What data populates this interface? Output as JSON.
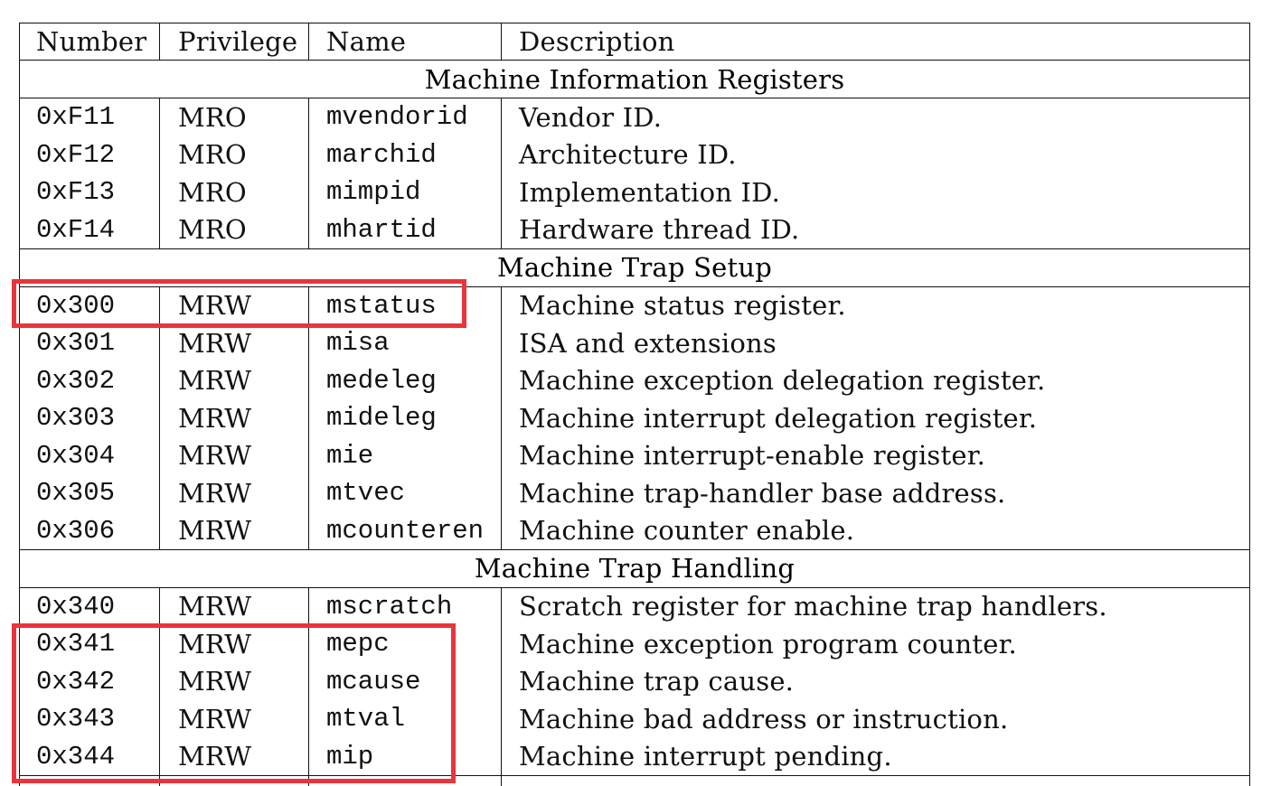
{
  "header": {
    "number": "Number",
    "privilege": "Privilege",
    "name": "Name",
    "description": "Description"
  },
  "sections": [
    {
      "title": "Machine Information Registers",
      "rows": [
        {
          "number": "0xF11",
          "privilege": "MRO",
          "name": "mvendorid",
          "description": "Vendor ID."
        },
        {
          "number": "0xF12",
          "privilege": "MRO",
          "name": "marchid",
          "description": "Architecture ID."
        },
        {
          "number": "0xF13",
          "privilege": "MRO",
          "name": "mimpid",
          "description": "Implementation ID."
        },
        {
          "number": "0xF14",
          "privilege": "MRO",
          "name": "mhartid",
          "description": "Hardware thread ID."
        }
      ]
    },
    {
      "title": "Machine Trap Setup",
      "rows": [
        {
          "number": "0x300",
          "privilege": "MRW",
          "name": "mstatus",
          "description": "Machine status register."
        },
        {
          "number": "0x301",
          "privilege": "MRW",
          "name": "misa",
          "description": "ISA and extensions"
        },
        {
          "number": "0x302",
          "privilege": "MRW",
          "name": "medeleg",
          "description": "Machine exception delegation register."
        },
        {
          "number": "0x303",
          "privilege": "MRW",
          "name": "mideleg",
          "description": "Machine interrupt delegation register."
        },
        {
          "number": "0x304",
          "privilege": "MRW",
          "name": "mie",
          "description": "Machine interrupt-enable register."
        },
        {
          "number": "0x305",
          "privilege": "MRW",
          "name": "mtvec",
          "description": "Machine trap-handler base address."
        },
        {
          "number": "0x306",
          "privilege": "MRW",
          "name": "mcounteren",
          "description": "Machine counter enable."
        }
      ]
    },
    {
      "title": "Machine Trap Handling",
      "rows": [
        {
          "number": "0x340",
          "privilege": "MRW",
          "name": "mscratch",
          "description": "Scratch register for machine trap handlers."
        },
        {
          "number": "0x341",
          "privilege": "MRW",
          "name": "mepc",
          "description": "Machine exception program counter."
        },
        {
          "number": "0x342",
          "privilege": "MRW",
          "name": "mcause",
          "description": "Machine trap cause."
        },
        {
          "number": "0x343",
          "privilege": "MRW",
          "name": "mtval",
          "description": "Machine bad address or instruction."
        },
        {
          "number": "0x344",
          "privilege": "MRW",
          "name": "mip",
          "description": "Machine interrupt pending."
        }
      ]
    }
  ],
  "colors": {
    "highlight": "#e8353c",
    "rule": "#111111"
  }
}
